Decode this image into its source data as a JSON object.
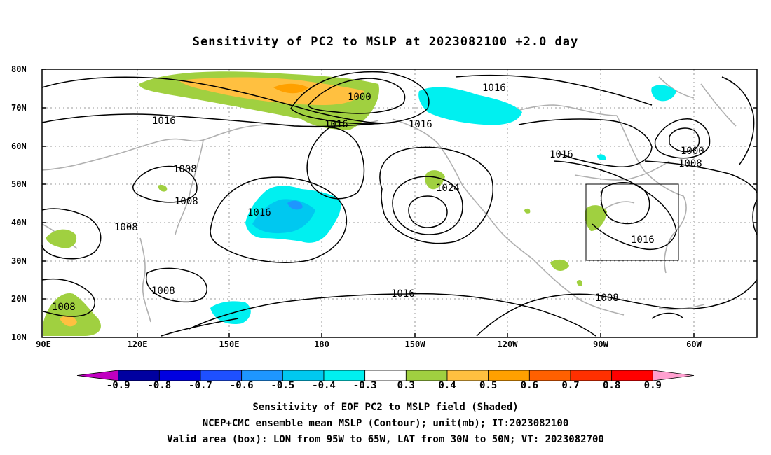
{
  "title": "Sensitivity of PC2 to MSLP at 2023082100 +2.0 day",
  "lat_labels": [
    "80N",
    "70N",
    "60N",
    "50N",
    "40N",
    "30N",
    "20N",
    "10N"
  ],
  "lon_labels": [
    "90E",
    "120E",
    "150E",
    "180",
    "150W",
    "120W",
    "90W",
    "60W"
  ],
  "contour_labels": [
    {
      "text": "1000"
    },
    {
      "text": "1016"
    },
    {
      "text": "1016"
    },
    {
      "text": "1016"
    },
    {
      "text": "1016"
    },
    {
      "text": "1008"
    },
    {
      "text": "1008"
    },
    {
      "text": "1024"
    },
    {
      "text": "1016"
    },
    {
      "text": "1008"
    },
    {
      "text": "1016"
    },
    {
      "text": "1000"
    },
    {
      "text": "1008"
    },
    {
      "text": "1016"
    },
    {
      "text": "1008"
    },
    {
      "text": "1016"
    },
    {
      "text": "1008"
    },
    {
      "text": "1008"
    }
  ],
  "colorbar": {
    "labels": [
      "-0.9",
      "-0.8",
      "-0.7",
      "-0.6",
      "-0.5",
      "-0.4",
      "-0.3",
      "0.3",
      "0.4",
      "0.5",
      "0.6",
      "0.7",
      "0.8",
      "0.9"
    ],
    "colors": [
      "#c000c0",
      "#0000a0",
      "#0000e0",
      "#1e50ff",
      "#1e96ff",
      "#00c8f0",
      "#00f0f0",
      "#ffffff",
      "#a0d040",
      "#ffc040",
      "#ffa000",
      "#ff6000",
      "#ff3000",
      "#ff0000",
      "#ffa0d0"
    ]
  },
  "captions": [
    "Sensitivity of EOF PC2 to MSLP field (Shaded)",
    "NCEP+CMC ensemble mean MSLP (Contour); unit(mb); IT:2023082100",
    "Valid area (box): LON from 95W to 65W, LAT from 30N to 50N; VT: 2023082700"
  ]
}
